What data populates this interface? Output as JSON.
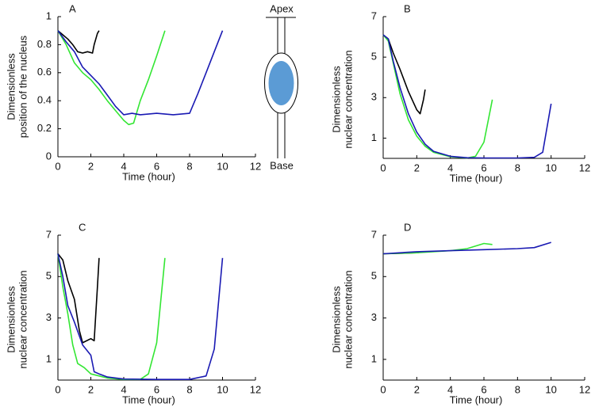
{
  "chart_data": [
    {
      "type": "line",
      "title": "A",
      "xlabel": "Time (hour)",
      "ylabel": [
        "Dimensionless",
        "position of the nucleus"
      ],
      "xlim": [
        0,
        12
      ],
      "xticks": [
        0,
        2,
        4,
        6,
        8,
        10,
        12
      ],
      "ylim": [
        0,
        1
      ],
      "yticks": [
        0,
        0.2,
        0.4,
        0.6,
        0.8,
        1
      ],
      "series": [
        {
          "color": "#000000",
          "x": [
            0,
            0.3,
            0.6,
            0.9,
            1.2,
            1.5,
            1.8,
            2.1,
            2.2,
            2.4,
            2.5
          ],
          "values": [
            0.9,
            0.87,
            0.84,
            0.8,
            0.75,
            0.74,
            0.75,
            0.74,
            0.8,
            0.88,
            0.9
          ]
        },
        {
          "color": "#33e633",
          "x": [
            0,
            0.5,
            1,
            1.5,
            2,
            2.5,
            3,
            3.5,
            4,
            4.3,
            4.6,
            5,
            5.5,
            6,
            6.5
          ],
          "values": [
            0.9,
            0.8,
            0.67,
            0.6,
            0.55,
            0.48,
            0.4,
            0.33,
            0.26,
            0.23,
            0.24,
            0.4,
            0.55,
            0.72,
            0.9
          ]
        },
        {
          "color": "#1a1ab3",
          "x": [
            0,
            0.5,
            1,
            1.5,
            2,
            2.5,
            3,
            3.5,
            4,
            4.5,
            5,
            6,
            7,
            8,
            8.5,
            9,
            9.5,
            10
          ],
          "values": [
            0.9,
            0.82,
            0.75,
            0.64,
            0.58,
            0.52,
            0.44,
            0.36,
            0.3,
            0.31,
            0.3,
            0.31,
            0.3,
            0.31,
            0.45,
            0.6,
            0.75,
            0.9
          ]
        }
      ]
    },
    {
      "type": "line",
      "title": "B",
      "xlabel": "Time (hour)",
      "ylabel": [
        "Dimensionless",
        "nuclear concentration"
      ],
      "xlim": [
        0,
        12
      ],
      "xticks": [
        0,
        2,
        4,
        6,
        8,
        10,
        12
      ],
      "ylim": [
        0,
        7
      ],
      "yticks": [
        1,
        3,
        5,
        7
      ],
      "series": [
        {
          "color": "#000000",
          "x": [
            0,
            0.3,
            0.6,
            1,
            1.5,
            2,
            2.2,
            2.4,
            2.5
          ],
          "values": [
            6.1,
            5.9,
            5.2,
            4.4,
            3.3,
            2.4,
            2.2,
            2.9,
            3.4
          ]
        },
        {
          "color": "#33e633",
          "x": [
            0,
            0.3,
            0.6,
            1,
            1.5,
            2,
            2.5,
            3,
            4,
            5,
            5.5,
            6,
            6.5
          ],
          "values": [
            6.1,
            5.8,
            4.7,
            3.2,
            1.9,
            1.1,
            0.6,
            0.3,
            0.08,
            0.02,
            0.1,
            0.8,
            2.9
          ]
        },
        {
          "color": "#1a1ab3",
          "x": [
            0,
            0.3,
            0.6,
            1,
            1.5,
            2,
            2.5,
            3,
            4,
            5,
            6,
            8,
            9,
            9.5,
            10
          ],
          "values": [
            6.1,
            5.9,
            4.8,
            3.5,
            2.2,
            1.3,
            0.7,
            0.35,
            0.1,
            0.03,
            0.02,
            0.02,
            0.05,
            0.3,
            2.7
          ]
        }
      ]
    },
    {
      "type": "line",
      "title": "C",
      "xlabel": "Time (hour)",
      "ylabel": [
        "Dimensionless",
        "nuclear concentration"
      ],
      "xlim": [
        0,
        12
      ],
      "xticks": [
        0,
        2,
        4,
        6,
        8,
        10,
        12
      ],
      "ylim": [
        0,
        7
      ],
      "yticks": [
        1,
        3,
        5,
        7
      ],
      "series": [
        {
          "color": "#000000",
          "x": [
            0,
            0.3,
            0.6,
            1,
            1.3,
            1.5,
            2,
            2.2,
            2.4,
            2.5
          ],
          "values": [
            6.1,
            5.8,
            4.8,
            3.9,
            2.4,
            1.8,
            2,
            1.9,
            4.5,
            5.9
          ]
        },
        {
          "color": "#33e633",
          "x": [
            0,
            0.3,
            0.6,
            0.9,
            1.2,
            1.6,
            2,
            3,
            4,
            5,
            5.5,
            6,
            6.5
          ],
          "values": [
            6.1,
            4.5,
            3.2,
            1.7,
            0.8,
            0.6,
            0.3,
            0.1,
            0.03,
            0.03,
            0.3,
            1.8,
            5.9
          ]
        },
        {
          "color": "#1a1ab3",
          "x": [
            0,
            0.3,
            0.6,
            1,
            1.5,
            2,
            2.2,
            2.5,
            3,
            4,
            6,
            8,
            9,
            9.5,
            10
          ],
          "values": [
            6.1,
            5,
            3.6,
            2.8,
            1.7,
            1.2,
            0.4,
            0.3,
            0.15,
            0.05,
            0.03,
            0.03,
            0.2,
            1.5,
            5.9
          ]
        }
      ]
    },
    {
      "type": "line",
      "title": "D",
      "xlabel": "Time (hour)",
      "ylabel": [
        "Dimensionless",
        "nuclear concentration"
      ],
      "xlim": [
        0,
        12
      ],
      "xticks": [
        0,
        2,
        4,
        6,
        8,
        10,
        12
      ],
      "ylim": [
        0,
        7
      ],
      "yticks": [
        1,
        3,
        5,
        7
      ],
      "series": [
        {
          "color": "#000000",
          "x": [
            0,
            1,
            2,
            2.4
          ],
          "values": [
            6.1,
            6.12,
            6.15,
            6.2
          ]
        },
        {
          "color": "#33e633",
          "x": [
            0,
            2,
            4,
            5,
            6,
            6.5
          ],
          "values": [
            6.1,
            6.15,
            6.25,
            6.35,
            6.6,
            6.55
          ]
        },
        {
          "color": "#1a1ab3",
          "x": [
            0,
            2,
            4,
            6,
            8,
            9,
            10
          ],
          "values": [
            6.1,
            6.2,
            6.25,
            6.3,
            6.35,
            6.4,
            6.65
          ]
        }
      ]
    }
  ],
  "diagram": {
    "top_label": "Apex",
    "bottom_label": "Base"
  }
}
